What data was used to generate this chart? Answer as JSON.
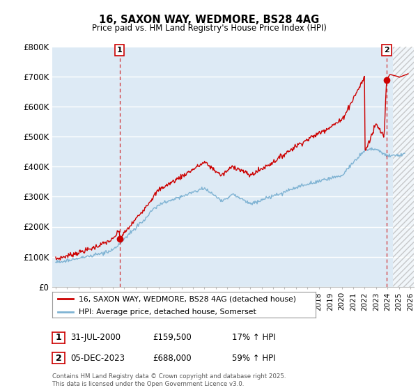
{
  "title": "16, SAXON WAY, WEDMORE, BS28 4AG",
  "subtitle": "Price paid vs. HM Land Registry's House Price Index (HPI)",
  "red_label": "16, SAXON WAY, WEDMORE, BS28 4AG (detached house)",
  "blue_label": "HPI: Average price, detached house, Somerset",
  "annotation1_box": "1",
  "annotation1_date": "31-JUL-2000",
  "annotation1_price": "£159,500",
  "annotation1_pct": "17% ↑ HPI",
  "annotation2_box": "2",
  "annotation2_date": "05-DEC-2023",
  "annotation2_price": "£688,000",
  "annotation2_pct": "59% ↑ HPI",
  "footer": "Contains HM Land Registry data © Crown copyright and database right 2025.\nThis data is licensed under the Open Government Licence v3.0.",
  "ylim": [
    0,
    800000
  ],
  "yticks": [
    0,
    100000,
    200000,
    300000,
    400000,
    500000,
    600000,
    700000,
    800000
  ],
  "ytick_labels": [
    "£0",
    "£100K",
    "£200K",
    "£300K",
    "£400K",
    "£500K",
    "£600K",
    "£700K",
    "£800K"
  ],
  "red_color": "#cc0000",
  "blue_color": "#7fb3d3",
  "background_color": "#ddeaf5",
  "grid_color": "#ffffff",
  "marker1_x": 2000.58,
  "marker1_y": 159500,
  "marker2_x": 2023.92,
  "marker2_y": 688000,
  "vline1_x": 2000.58,
  "vline2_x": 2023.92,
  "hatch_start_x": 2024.5,
  "xlim_left": 1994.7,
  "xlim_right": 2026.3
}
